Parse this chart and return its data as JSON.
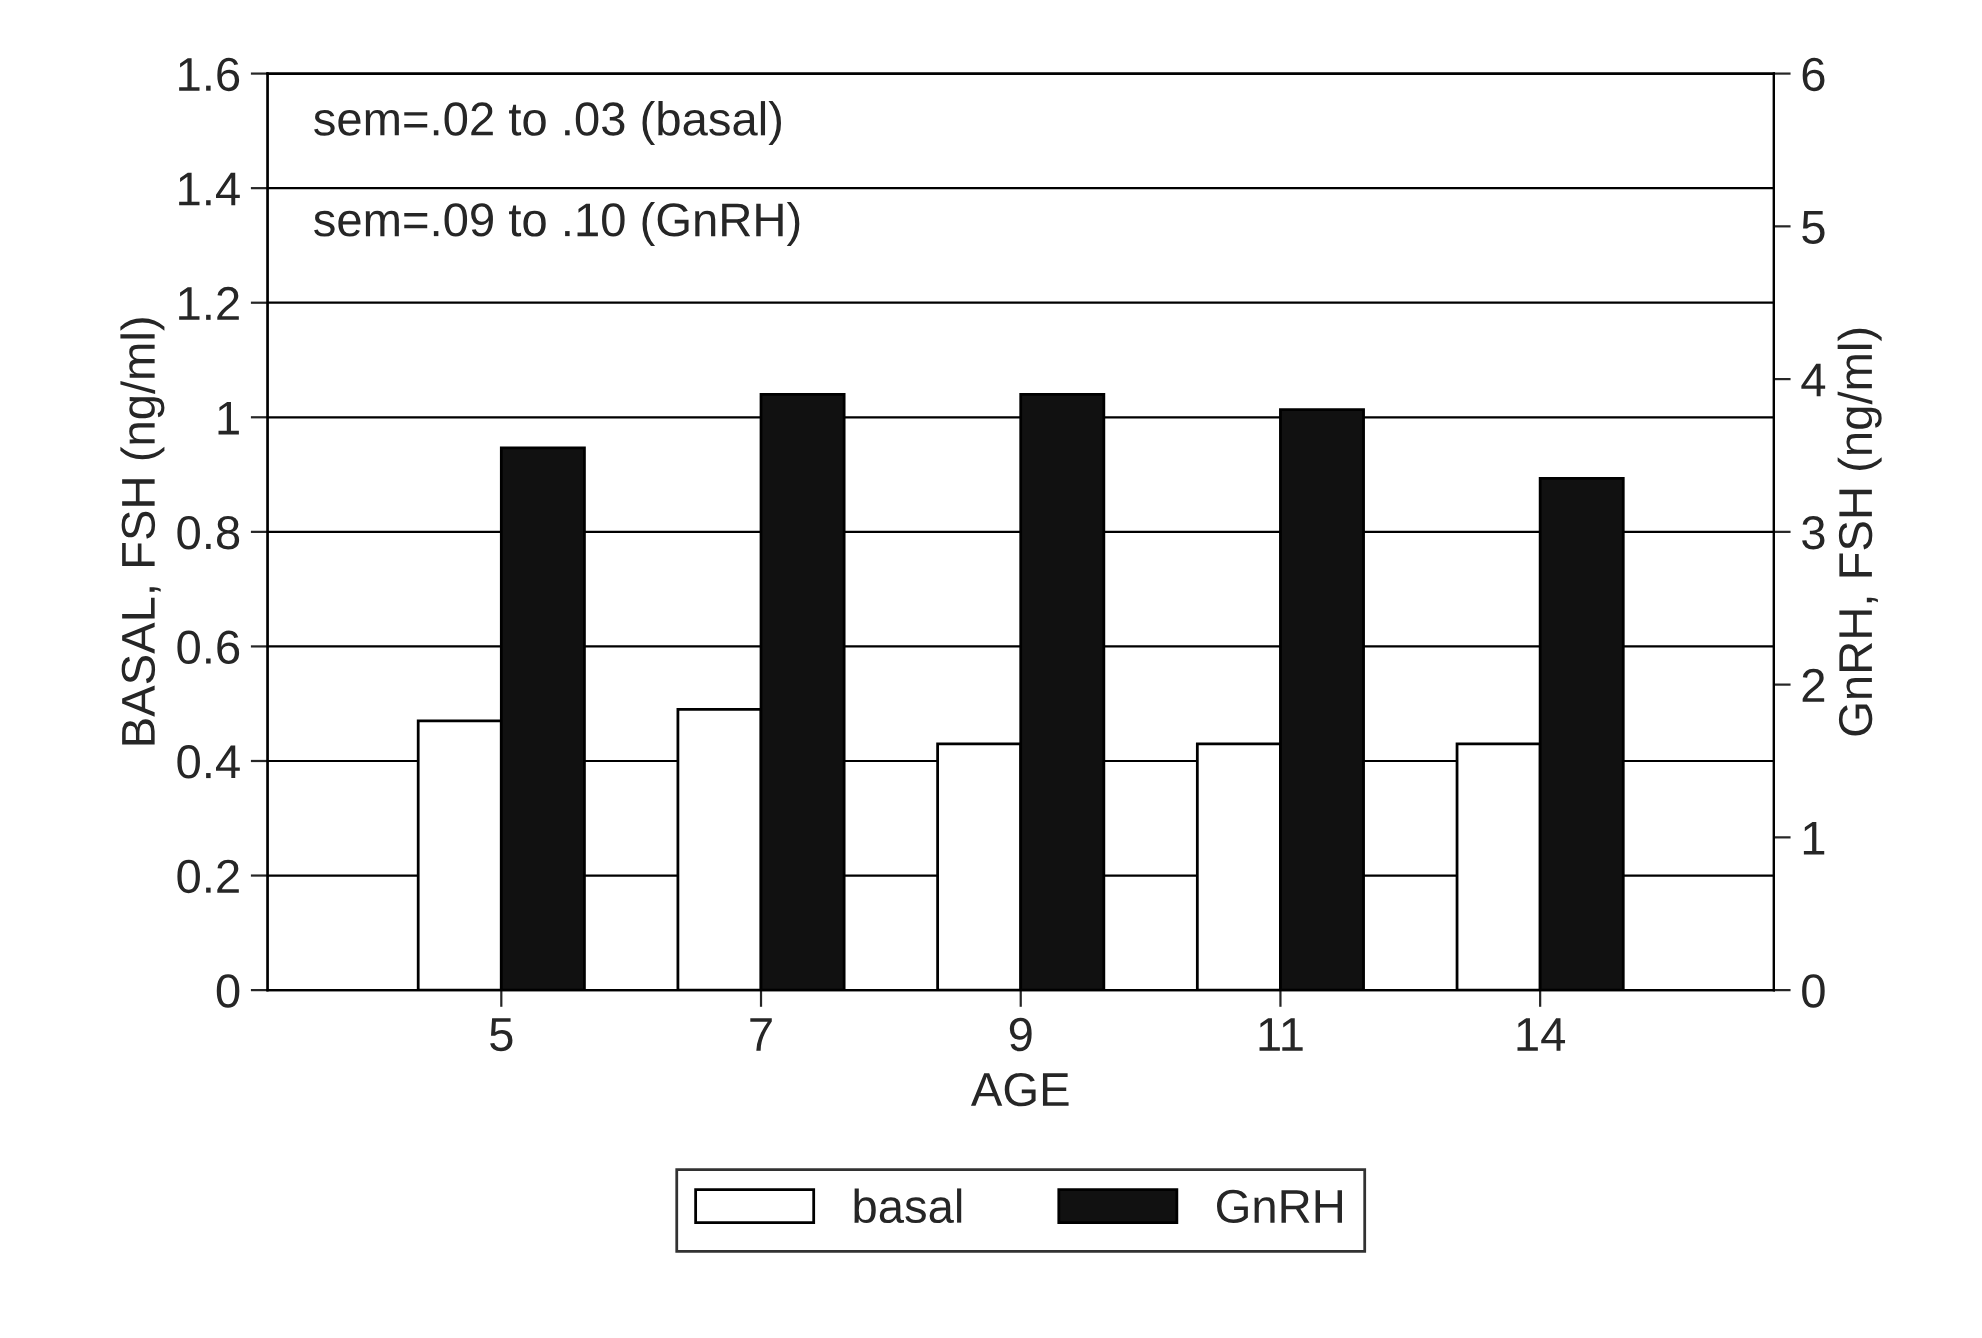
{
  "chart_data": {
    "type": "bar",
    "xlabel": "AGE",
    "ylabel": "BASAL, FSH (ng/ml)",
    "y2label": "GnRH, FSH (ng/ml)",
    "categories": [
      "5",
      "7",
      "9",
      "11",
      "14"
    ],
    "series": [
      {
        "name": "basal",
        "color": "#ffffff",
        "values": [
          0.47,
          0.49,
          0.43,
          0.43,
          0.43
        ]
      },
      {
        "name": "GnRH",
        "color": "#111111",
        "axis": "y2",
        "values": [
          3.55,
          3.9,
          3.9,
          3.8,
          3.35
        ]
      }
    ],
    "ylim": [
      0,
      1.6
    ],
    "yticks": [
      0,
      0.2,
      0.4,
      0.6,
      0.8,
      1,
      1.2,
      1.4,
      1.6
    ],
    "y2lim": [
      0,
      6
    ],
    "y2ticks": [
      0,
      1,
      2,
      3,
      4,
      5,
      6
    ],
    "annotations": [
      "sem=.02 to .03 (basal)",
      "sem=.09 to .10 (GnRH)"
    ],
    "grid": "y",
    "legend": "bottom"
  }
}
